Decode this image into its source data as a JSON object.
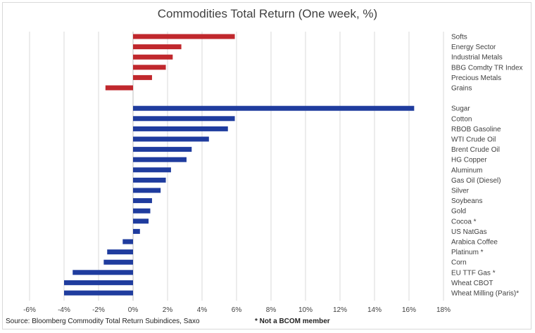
{
  "chart_data": {
    "type": "bar",
    "orientation": "horizontal",
    "title": "Commodities Total Return (One week, %)",
    "xlim": [
      -6,
      18
    ],
    "x_ticks": [
      "-6%",
      "-4%",
      "-2%",
      "0%",
      "2%",
      "4%",
      "6%",
      "8%",
      "10%",
      "12%",
      "14%",
      "16%",
      "18%"
    ],
    "x_tick_values": [
      -6,
      -4,
      -2,
      0,
      2,
      4,
      6,
      8,
      10,
      12,
      14,
      16,
      18
    ],
    "grid": "vertical",
    "groups": [
      {
        "color": "#c0282d",
        "categories": [
          "Softs",
          "Energy Sector",
          "Industrial Metals",
          "BBG Comdty TR Index",
          "Precious Metals",
          "Grains"
        ],
        "values": [
          5.9,
          2.8,
          2.3,
          1.9,
          1.1,
          -1.6
        ]
      },
      {
        "color": "#1f3c9e",
        "categories": [
          "Sugar",
          "Cotton",
          "RBOB Gasoline",
          "WTI Crude Oil",
          "Brent Crude Oil",
          "HG Copper",
          "Aluminum",
          "Gas Oil (Diesel)",
          "Silver",
          "Soybeans",
          "Gold",
          "Cocoa *",
          "US NatGas",
          "Arabica Coffee",
          "Platinum *",
          "Corn",
          "EU TTF Gas *",
          "Wheat CBOT",
          "Wheat Milling (Paris)*"
        ],
        "values": [
          16.3,
          5.9,
          5.5,
          4.4,
          3.4,
          3.1,
          2.2,
          1.9,
          1.6,
          1.1,
          1.0,
          0.9,
          0.4,
          -0.6,
          -1.5,
          -1.7,
          -3.5,
          -4.0,
          -4.0
        ]
      }
    ]
  },
  "footer": {
    "source": "Source: Bloomberg Commodity Total Return Subindices, Saxo",
    "note": "* Not a BCOM member"
  }
}
